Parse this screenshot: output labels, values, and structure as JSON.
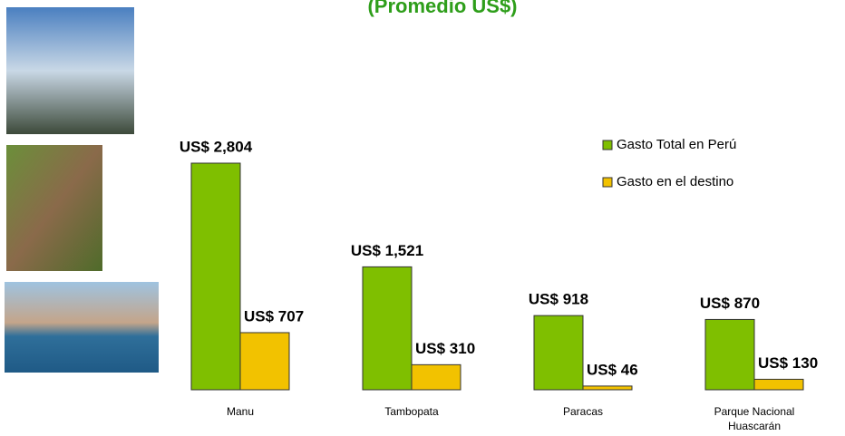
{
  "chart_data": {
    "type": "bar",
    "title": "(Promedio US$)",
    "categories": [
      "Manu",
      "Tambopata",
      "Paracas",
      "Parque Nacional Huascarán"
    ],
    "series": [
      {
        "name": "Gasto Total en Perú",
        "color": "#7fbf00",
        "values": [
          2804,
          1521,
          918,
          870
        ],
        "value_labels": [
          "US$ 2,804",
          "US$ 1,521",
          "US$ 918",
          "US$ 870"
        ]
      },
      {
        "name": "Gasto en el destino",
        "color": "#f2c200",
        "values": [
          707,
          310,
          46,
          130
        ],
        "value_labels": [
          "US$ 707",
          "US$ 310",
          "US$ 46",
          "US$ 130"
        ]
      }
    ],
    "legend": "upper right"
  }
}
